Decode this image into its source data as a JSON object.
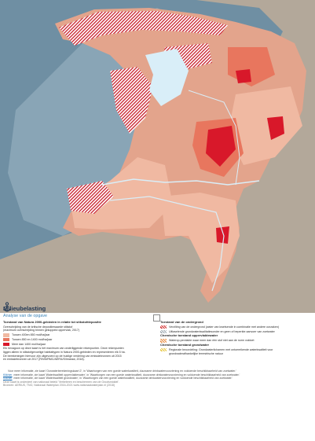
{
  "map": {
    "colors": {
      "sea": "#6f8fa3",
      "land_base": "#e3a48c",
      "low": "#f0b9a2",
      "mid": "#e8765e",
      "high": "#d8182a",
      "hatch": "#c81e2b",
      "water": "#d9eef8",
      "outside": "#b3a89a"
    }
  },
  "page": {
    "title": "Milieubelasting",
    "subtitle": "Analyse van de opgave"
  },
  "legend_left": {
    "heading": "Toestand van Natura 2000-gebieden in relatie tot stikstofdepositie",
    "lines": [
      "Overschrijding van de kritische depositiewaarde stikstof",
      "(maximum overschrijding binnen gekoppeld oppervlak, 2017)"
    ],
    "items": [
      "Tussen 400en 850 mol/ha/jaar",
      "Tussen 850 en 1400 mol/ha/jaar",
      "Meer dan 1400 mol/ha/jaar"
    ],
    "body": [
      "Elk hexagoon op deze kaart is het maximum van onderliggende rekenpunten. Deze rekenpunten",
      "liggen alleen in stikstofgevoelige habitattypen in Natura 2000-gebieden en representeren elk 5 ha.",
      "De berekeningen hiervoor zijn uitgevoerd op de huidige verdeling van emissiebronnen uit 2015",
      "en emissiebronnen uit 2017 (RIVM/RMC/AERIUS/Imaraw, 2018)."
    ]
  },
  "legend_right": {
    "heading1": "Toestand van de ondergrond",
    "items1": [
      "Verzilting van de ondergrond (water van kwetsende in combinatie met andere oorzaken)",
      "Uitlaselende grondwaterkwalitatiesonder en geen of beperkte aanvoer van zoetwater"
    ],
    "heading2": "Chemische toestand oppervlaktewater",
    "items2": [
      "Waterop-pervlakte waar meer dan één stof niet aan de norm voldoet"
    ],
    "heading3": "Chemische toestand grondwater",
    "items3": [
      "Regionale beoordeling: Grondwaterlichamen met ontoereikende waterkwaliteit voor",
      "grondwaterafhankelijke terrestrische natuur"
    ]
  },
  "footer": {
    "rows": [
      {
        "link": "",
        "text": "Voor meer informatie, zie kaart 'Oorwaterberekeningskaart 2', in 'Waarborgen van een goede waterkwaliteit, duurzame drinkwatervoorziening en voldoende beschikbaarheid van zoetwater.'"
      },
      {
        "link": "Klikhier",
        "text": "meer informatie, zie kaart 'Waterkwaliteit oppervlaktewater', in 'Waarborgen van een goede waterkwaliteit, duurzame drinkwatervoorziening en voldoende beschikbaarheid van zoetwater.'"
      },
      {
        "link": "Klikhier",
        "text": "meer informatie, zie kaart 'Waterkwaliteit grondwater', in 'Waarborgen van een goede waterkwaliteit, duurzame drinkwatervoorziening en voldoende beschikbaarheid van zoetwater.'"
      }
    ],
    "notes": [
      "Deze kaart is onderdeel van nationaal beleid 'Verbeteren en beschermen van de Grootsmiddel'.",
      "Bronnen: AERIUS, TNO, Nationaal Waterplan 2016-2021 www.nationaalwaterplan.nl (2018)"
    ]
  }
}
